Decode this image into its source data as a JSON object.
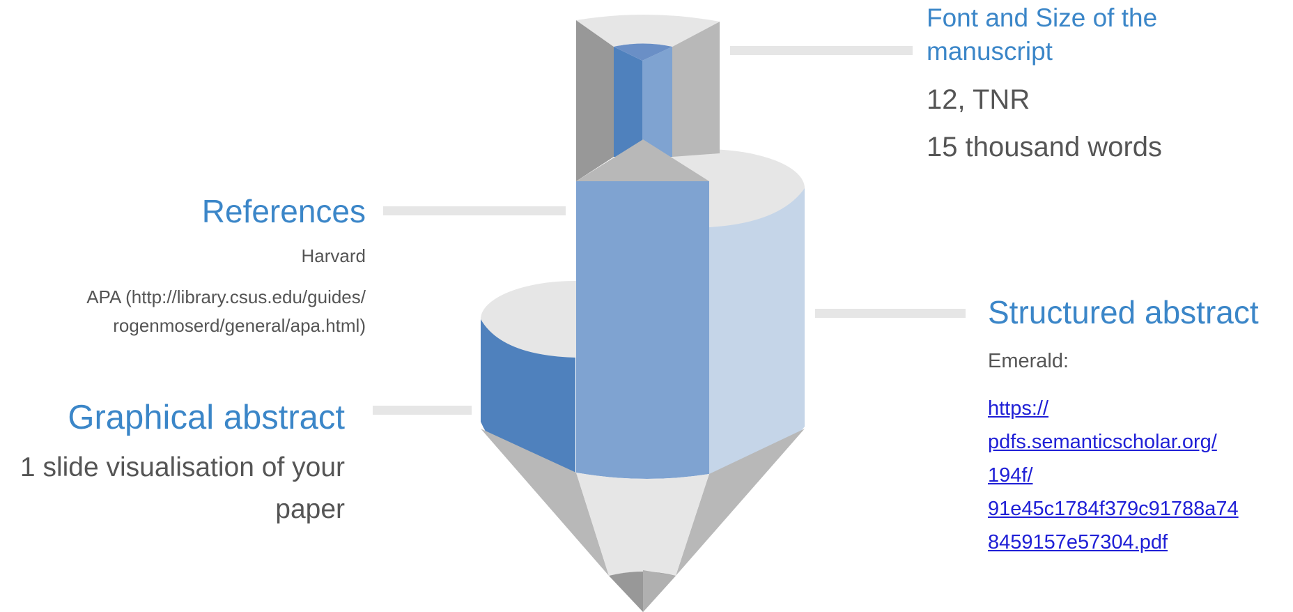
{
  "colors": {
    "heading": "#3b86c8",
    "body_text": "#555555",
    "link": "#1f1fd6",
    "dark_blue": "#4f81bd",
    "mid_blue": "#7fa3d1",
    "light_blue": "#c5d5e8",
    "light_grey": "#e6e6e6",
    "mid_grey": "#b8b8b8",
    "dark_grey": "#989898"
  },
  "font_size": {
    "heading": "Font and Size of the manuscript",
    "line1": "12, TNR",
    "line2": "15 thousand words"
  },
  "references": {
    "heading": "References",
    "line1": "Harvard",
    "line2a": "APA (http://library.csus.edu/guides/",
    "line2b": "rogenmoserd/general/apa.html)"
  },
  "structured_abstract": {
    "heading": "Structured abstract",
    "label": "Emerald:",
    "link_lines": [
      "https://",
      "pdfs.semanticscholar.org/",
      "194f/",
      "91e45c1784f379c91788a74",
      "8459157e57304.pdf"
    ]
  },
  "graphical_abstract": {
    "heading": "Graphical abstract",
    "line1": "1 slide visualisation of your",
    "line2": "paper"
  }
}
